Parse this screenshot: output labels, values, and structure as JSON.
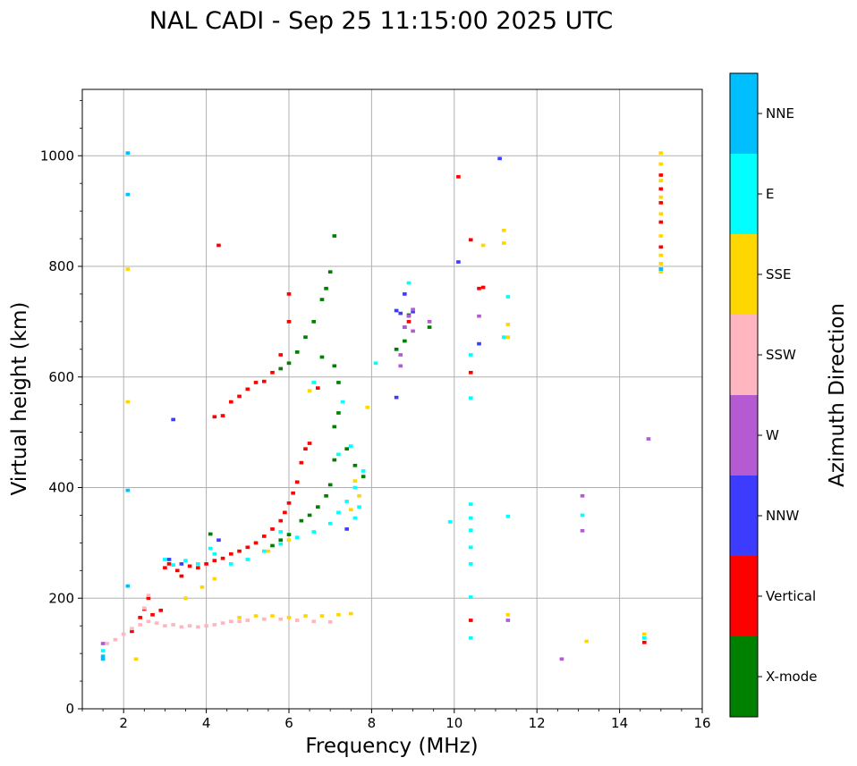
{
  "chart_data": {
    "type": "scatter",
    "title": "NAL CADI - Sep 25 11:15:00 2025 UTC",
    "xlabel": "Frequency (MHz)",
    "ylabel": "Virtual height (km)",
    "xlim": [
      1,
      16
    ],
    "ylim": [
      0,
      1120
    ],
    "xticks": [
      2,
      4,
      6,
      8,
      10,
      12,
      14,
      16
    ],
    "yticks": [
      0,
      200,
      400,
      600,
      800,
      1000
    ],
    "grid": true,
    "colorbar": {
      "label": "Azimuth Direction",
      "categories": [
        "X-mode",
        "Vertical",
        "NNW",
        "W",
        "SSW",
        "SSE",
        "E",
        "NNE"
      ],
      "colors": [
        "#008000",
        "#ff0000",
        "#3c3cff",
        "#b45ad2",
        "#ffb6c1",
        "#ffd700",
        "#00ffff",
        "#00bfff"
      ]
    },
    "series": [
      {
        "name": "Vertical",
        "color": "#ff0000",
        "points": [
          [
            2.2,
            140
          ],
          [
            2.4,
            165
          ],
          [
            2.5,
            180
          ],
          [
            2.6,
            200
          ],
          [
            2.7,
            170
          ],
          [
            2.9,
            178
          ],
          [
            3.0,
            255
          ],
          [
            3.1,
            262
          ],
          [
            3.3,
            250
          ],
          [
            3.4,
            240
          ],
          [
            3.6,
            258
          ],
          [
            3.8,
            255
          ],
          [
            4.0,
            262
          ],
          [
            4.2,
            268
          ],
          [
            4.4,
            272
          ],
          [
            4.6,
            280
          ],
          [
            4.8,
            285
          ],
          [
            5.0,
            292
          ],
          [
            5.2,
            300
          ],
          [
            5.4,
            312
          ],
          [
            5.6,
            325
          ],
          [
            5.8,
            340
          ],
          [
            5.9,
            355
          ],
          [
            6.0,
            372
          ],
          [
            6.1,
            390
          ],
          [
            6.2,
            410
          ],
          [
            6.3,
            445
          ],
          [
            6.4,
            470
          ],
          [
            6.5,
            480
          ],
          [
            4.2,
            528
          ],
          [
            4.4,
            530
          ],
          [
            4.6,
            555
          ],
          [
            4.8,
            565
          ],
          [
            5.0,
            578
          ],
          [
            5.2,
            590
          ],
          [
            5.4,
            592
          ],
          [
            5.6,
            608
          ],
          [
            5.8,
            640
          ],
          [
            6.0,
            700
          ],
          [
            6.0,
            750
          ],
          [
            4.3,
            838
          ],
          [
            10.1,
            962
          ],
          [
            10.4,
            848
          ],
          [
            10.4,
            608
          ],
          [
            10.6,
            760
          ],
          [
            10.7,
            762
          ],
          [
            10.4,
            160
          ],
          [
            14.6,
            120
          ],
          [
            15.0,
            965
          ],
          [
            15.0,
            940
          ],
          [
            15.0,
            915
          ],
          [
            15.0,
            880
          ],
          [
            15.0,
            835
          ],
          [
            15.0,
            795
          ],
          [
            8.9,
            700
          ],
          [
            6.7,
            580
          ]
        ]
      },
      {
        "name": "X-mode",
        "color": "#008000",
        "points": [
          [
            4.1,
            316
          ],
          [
            5.6,
            295
          ],
          [
            5.8,
            305
          ],
          [
            6.0,
            315
          ],
          [
            6.3,
            340
          ],
          [
            6.5,
            350
          ],
          [
            6.7,
            365
          ],
          [
            6.9,
            385
          ],
          [
            7.0,
            405
          ],
          [
            7.1,
            450
          ],
          [
            7.1,
            510
          ],
          [
            7.2,
            535
          ],
          [
            7.4,
            470
          ],
          [
            7.6,
            440
          ],
          [
            7.8,
            420
          ],
          [
            5.8,
            615
          ],
          [
            6.0,
            625
          ],
          [
            6.2,
            645
          ],
          [
            6.4,
            672
          ],
          [
            6.6,
            700
          ],
          [
            6.8,
            740
          ],
          [
            6.9,
            760
          ],
          [
            7.0,
            790
          ],
          [
            7.1,
            855
          ],
          [
            8.6,
            650
          ],
          [
            8.8,
            665
          ],
          [
            8.8,
            690
          ],
          [
            8.9,
            712
          ],
          [
            9.4,
            690
          ],
          [
            7.2,
            590
          ],
          [
            7.1,
            620
          ],
          [
            6.8,
            636
          ]
        ]
      },
      {
        "name": "NNW",
        "color": "#3c3cff",
        "points": [
          [
            3.2,
            523
          ],
          [
            3.1,
            270
          ],
          [
            3.4,
            262
          ],
          [
            8.6,
            720
          ],
          [
            8.7,
            715
          ],
          [
            8.8,
            750
          ],
          [
            9.0,
            718
          ],
          [
            8.6,
            563
          ],
          [
            10.1,
            808
          ],
          [
            10.6,
            660
          ],
          [
            11.1,
            995
          ],
          [
            7.4,
            325
          ],
          [
            4.3,
            305
          ]
        ]
      },
      {
        "name": "W",
        "color": "#b45ad2",
        "points": [
          [
            8.7,
            620
          ],
          [
            8.7,
            640
          ],
          [
            8.8,
            690
          ],
          [
            8.9,
            710
          ],
          [
            9.0,
            722
          ],
          [
            9.0,
            683
          ],
          [
            9.4,
            700
          ],
          [
            10.6,
            710
          ],
          [
            14.7,
            488
          ],
          [
            13.1,
            385
          ],
          [
            13.1,
            322
          ],
          [
            12.6,
            90
          ],
          [
            11.3,
            160
          ],
          [
            1.5,
            118
          ]
        ]
      },
      {
        "name": "SSW",
        "color": "#ffb6c1",
        "points": [
          [
            1.6,
            118
          ],
          [
            1.8,
            125
          ],
          [
            2.0,
            135
          ],
          [
            2.2,
            145
          ],
          [
            2.4,
            152
          ],
          [
            2.6,
            158
          ],
          [
            2.8,
            155
          ],
          [
            3.0,
            150
          ],
          [
            3.2,
            152
          ],
          [
            3.4,
            148
          ],
          [
            3.6,
            150
          ],
          [
            3.8,
            148
          ],
          [
            4.0,
            150
          ],
          [
            4.2,
            152
          ],
          [
            4.4,
            155
          ],
          [
            4.6,
            158
          ],
          [
            4.8,
            158
          ],
          [
            5.0,
            160
          ],
          [
            5.4,
            162
          ],
          [
            5.8,
            162
          ],
          [
            6.2,
            160
          ],
          [
            6.6,
            158
          ],
          [
            7.0,
            157
          ],
          [
            2.5,
            182
          ],
          [
            2.6,
            205
          ]
        ]
      },
      {
        "name": "SSE",
        "color": "#ffd700",
        "points": [
          [
            2.3,
            90
          ],
          [
            2.1,
            795
          ],
          [
            2.1,
            555
          ],
          [
            3.5,
            200
          ],
          [
            3.9,
            220
          ],
          [
            4.2,
            235
          ],
          [
            4.8,
            165
          ],
          [
            5.2,
            168
          ],
          [
            5.6,
            168
          ],
          [
            6.0,
            165
          ],
          [
            6.4,
            168
          ],
          [
            6.8,
            168
          ],
          [
            7.2,
            170
          ],
          [
            7.5,
            172
          ],
          [
            5.5,
            285
          ],
          [
            6.0,
            305
          ],
          [
            7.9,
            545
          ],
          [
            7.6,
            412
          ],
          [
            7.5,
            360
          ],
          [
            6.5,
            575
          ],
          [
            7.7,
            385
          ],
          [
            10.7,
            838
          ],
          [
            11.2,
            865
          ],
          [
            11.2,
            842
          ],
          [
            11.3,
            695
          ],
          [
            11.3,
            672
          ],
          [
            11.3,
            170
          ],
          [
            13.2,
            122
          ],
          [
            14.6,
            135
          ],
          [
            15.0,
            1005
          ],
          [
            15.0,
            985
          ],
          [
            15.0,
            955
          ],
          [
            15.0,
            925
          ],
          [
            15.0,
            895
          ],
          [
            15.0,
            855
          ],
          [
            15.0,
            820
          ],
          [
            15.0,
            805
          ],
          [
            15.0,
            790
          ]
        ]
      },
      {
        "name": "E",
        "color": "#00ffff",
        "points": [
          [
            1.5,
            105
          ],
          [
            3.0,
            270
          ],
          [
            3.2,
            260
          ],
          [
            3.5,
            268
          ],
          [
            3.8,
            262
          ],
          [
            4.2,
            280
          ],
          [
            4.6,
            262
          ],
          [
            5.0,
            270
          ],
          [
            5.4,
            285
          ],
          [
            5.8,
            298
          ],
          [
            6.2,
            310
          ],
          [
            6.6,
            320
          ],
          [
            7.0,
            335
          ],
          [
            7.2,
            355
          ],
          [
            7.4,
            375
          ],
          [
            7.6,
            400
          ],
          [
            7.8,
            430
          ],
          [
            7.2,
            460
          ],
          [
            7.5,
            475
          ],
          [
            7.7,
            365
          ],
          [
            6.6,
            590
          ],
          [
            7.3,
            555
          ],
          [
            7.6,
            345
          ],
          [
            8.1,
            625
          ],
          [
            8.9,
            770
          ],
          [
            9.9,
            338
          ],
          [
            10.4,
            370
          ],
          [
            10.4,
            345
          ],
          [
            10.4,
            323
          ],
          [
            10.4,
            292
          ],
          [
            10.4,
            262
          ],
          [
            10.4,
            202
          ],
          [
            10.4,
            128
          ],
          [
            10.4,
            640
          ],
          [
            10.4,
            562
          ],
          [
            11.3,
            745
          ],
          [
            11.3,
            348
          ],
          [
            11.2,
            672
          ],
          [
            13.1,
            350
          ],
          [
            14.6,
            128
          ],
          [
            4.1,
            290
          ],
          [
            5.8,
            320
          ]
        ]
      },
      {
        "name": "NNE",
        "color": "#00bfff",
        "points": [
          [
            1.5,
            90
          ],
          [
            1.5,
            95
          ],
          [
            2.1,
            1005
          ],
          [
            2.1,
            930
          ],
          [
            2.1,
            395
          ],
          [
            2.1,
            222
          ],
          [
            15.0,
            795
          ]
        ]
      }
    ]
  }
}
